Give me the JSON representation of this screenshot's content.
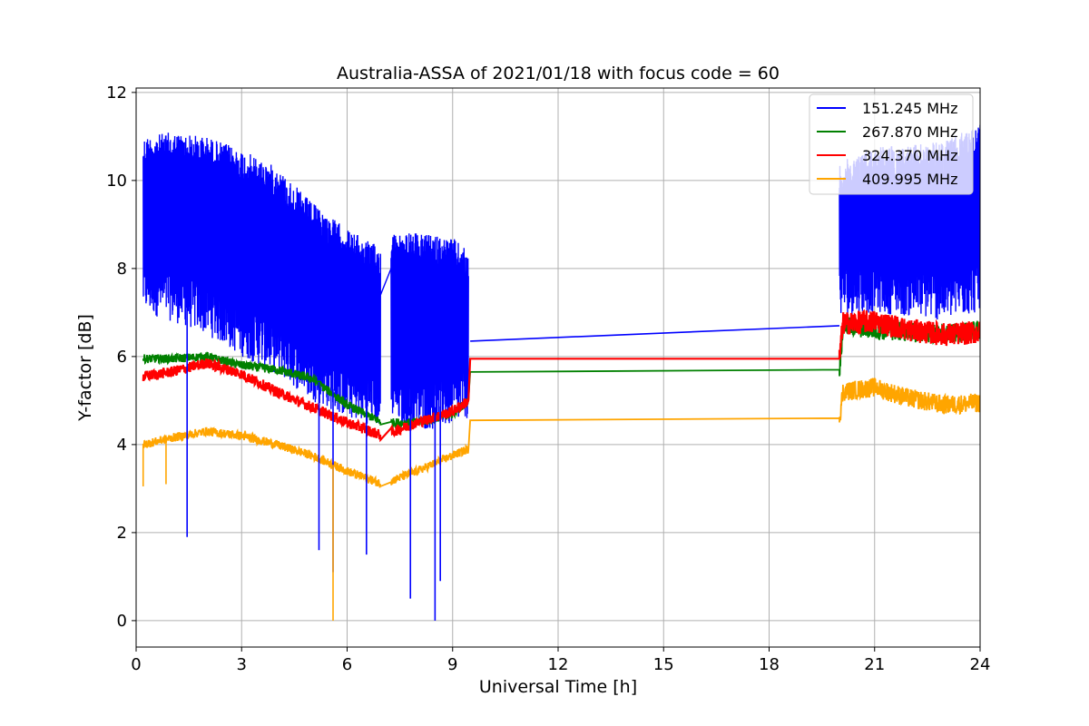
{
  "chart_data": {
    "type": "line",
    "title": "Australia-ASSA of 2021/01/18 with focus code = 60",
    "xlabel": "Universal Time [h]",
    "ylabel": "Y-factor [dB]",
    "xlim": [
      0,
      24
    ],
    "ylim": [
      -0.6,
      12.1
    ],
    "xticks": [
      0,
      3,
      6,
      9,
      12,
      15,
      18,
      21,
      24
    ],
    "yticks": [
      0,
      2,
      4,
      6,
      8,
      10,
      12
    ],
    "grid": true,
    "legend_position": "top-right",
    "series": [
      {
        "name": "151.245 MHz",
        "color": "#0000ff",
        "noise_band": [
          [
            0.2,
            7.0,
            11.0
          ],
          [
            1.0,
            6.8,
            11.1
          ],
          [
            2.0,
            6.5,
            11.0
          ],
          [
            3.0,
            6.0,
            10.7
          ],
          [
            4.0,
            5.6,
            10.3
          ],
          [
            5.0,
            5.0,
            9.5
          ],
          [
            6.0,
            4.6,
            8.9
          ],
          [
            6.9,
            4.4,
            8.5
          ],
          [
            7.3,
            4.5,
            8.8
          ],
          [
            8.0,
            4.3,
            8.8
          ],
          [
            9.0,
            4.4,
            8.7
          ],
          [
            9.45,
            4.6,
            8.4
          ],
          [
            20.0,
            6.9,
            10.4
          ],
          [
            21.0,
            7.0,
            10.8
          ],
          [
            22.0,
            6.9,
            10.8
          ],
          [
            23.0,
            6.8,
            10.9
          ],
          [
            24.0,
            7.0,
            11.3
          ]
        ],
        "x": [
          9.5,
          20.0
        ],
        "y": [
          6.35,
          6.7
        ]
      },
      {
        "name": "267.870 MHz",
        "color": "#008000",
        "x": [
          0.2,
          1.0,
          2.0,
          3.0,
          4.0,
          5.0,
          6.0,
          7.0,
          8.0,
          9.0,
          9.45,
          9.5,
          20.0,
          20.1,
          21.0,
          22.0,
          23.0,
          24.0
        ],
        "y": [
          5.95,
          5.95,
          6.0,
          5.8,
          5.7,
          5.5,
          4.9,
          4.5,
          4.5,
          4.7,
          5.0,
          5.65,
          5.7,
          6.7,
          6.6,
          6.55,
          6.5,
          6.6
        ]
      },
      {
        "name": "324.370 MHz",
        "color": "#ff0000",
        "x": [
          0.2,
          1.0,
          2.0,
          3.0,
          4.0,
          5.0,
          6.0,
          7.0,
          8.0,
          9.0,
          9.45,
          9.5,
          20.0,
          20.1,
          21.0,
          22.0,
          23.0,
          24.0
        ],
        "y": [
          5.55,
          5.65,
          5.85,
          5.6,
          5.2,
          4.85,
          4.5,
          4.2,
          4.5,
          4.75,
          5.0,
          5.95,
          5.95,
          6.75,
          6.8,
          6.6,
          6.5,
          6.55
        ]
      },
      {
        "name": "409.995 MHz",
        "color": "#ffa500",
        "x": [
          0.2,
          1.0,
          2.0,
          3.0,
          4.0,
          5.0,
          6.0,
          7.0,
          8.0,
          9.0,
          9.45,
          9.5,
          20.0,
          20.1,
          21.0,
          22.0,
          23.0,
          24.0
        ],
        "y": [
          4.0,
          4.15,
          4.3,
          4.2,
          4.0,
          3.75,
          3.4,
          3.1,
          3.4,
          3.75,
          3.9,
          4.55,
          4.6,
          5.2,
          5.3,
          5.05,
          4.9,
          4.95
        ]
      }
    ],
    "annotations_spikes": [
      {
        "series": 0,
        "x": 1.45,
        "y": 1.9
      },
      {
        "series": 0,
        "x": 5.6,
        "y": 1.1
      },
      {
        "series": 0,
        "x": 5.2,
        "y": 1.6
      },
      {
        "series": 0,
        "x": 7.8,
        "y": 0.5
      },
      {
        "series": 0,
        "x": 8.5,
        "y": 0.0
      },
      {
        "series": 0,
        "x": 8.65,
        "y": 0.9
      },
      {
        "series": 0,
        "x": 6.55,
        "y": 1.5
      },
      {
        "series": 3,
        "x": 5.6,
        "y": 0.0
      },
      {
        "series": 3,
        "x": 0.2,
        "y": 3.05
      },
      {
        "series": 3,
        "x": 0.85,
        "y": 3.1
      }
    ]
  }
}
